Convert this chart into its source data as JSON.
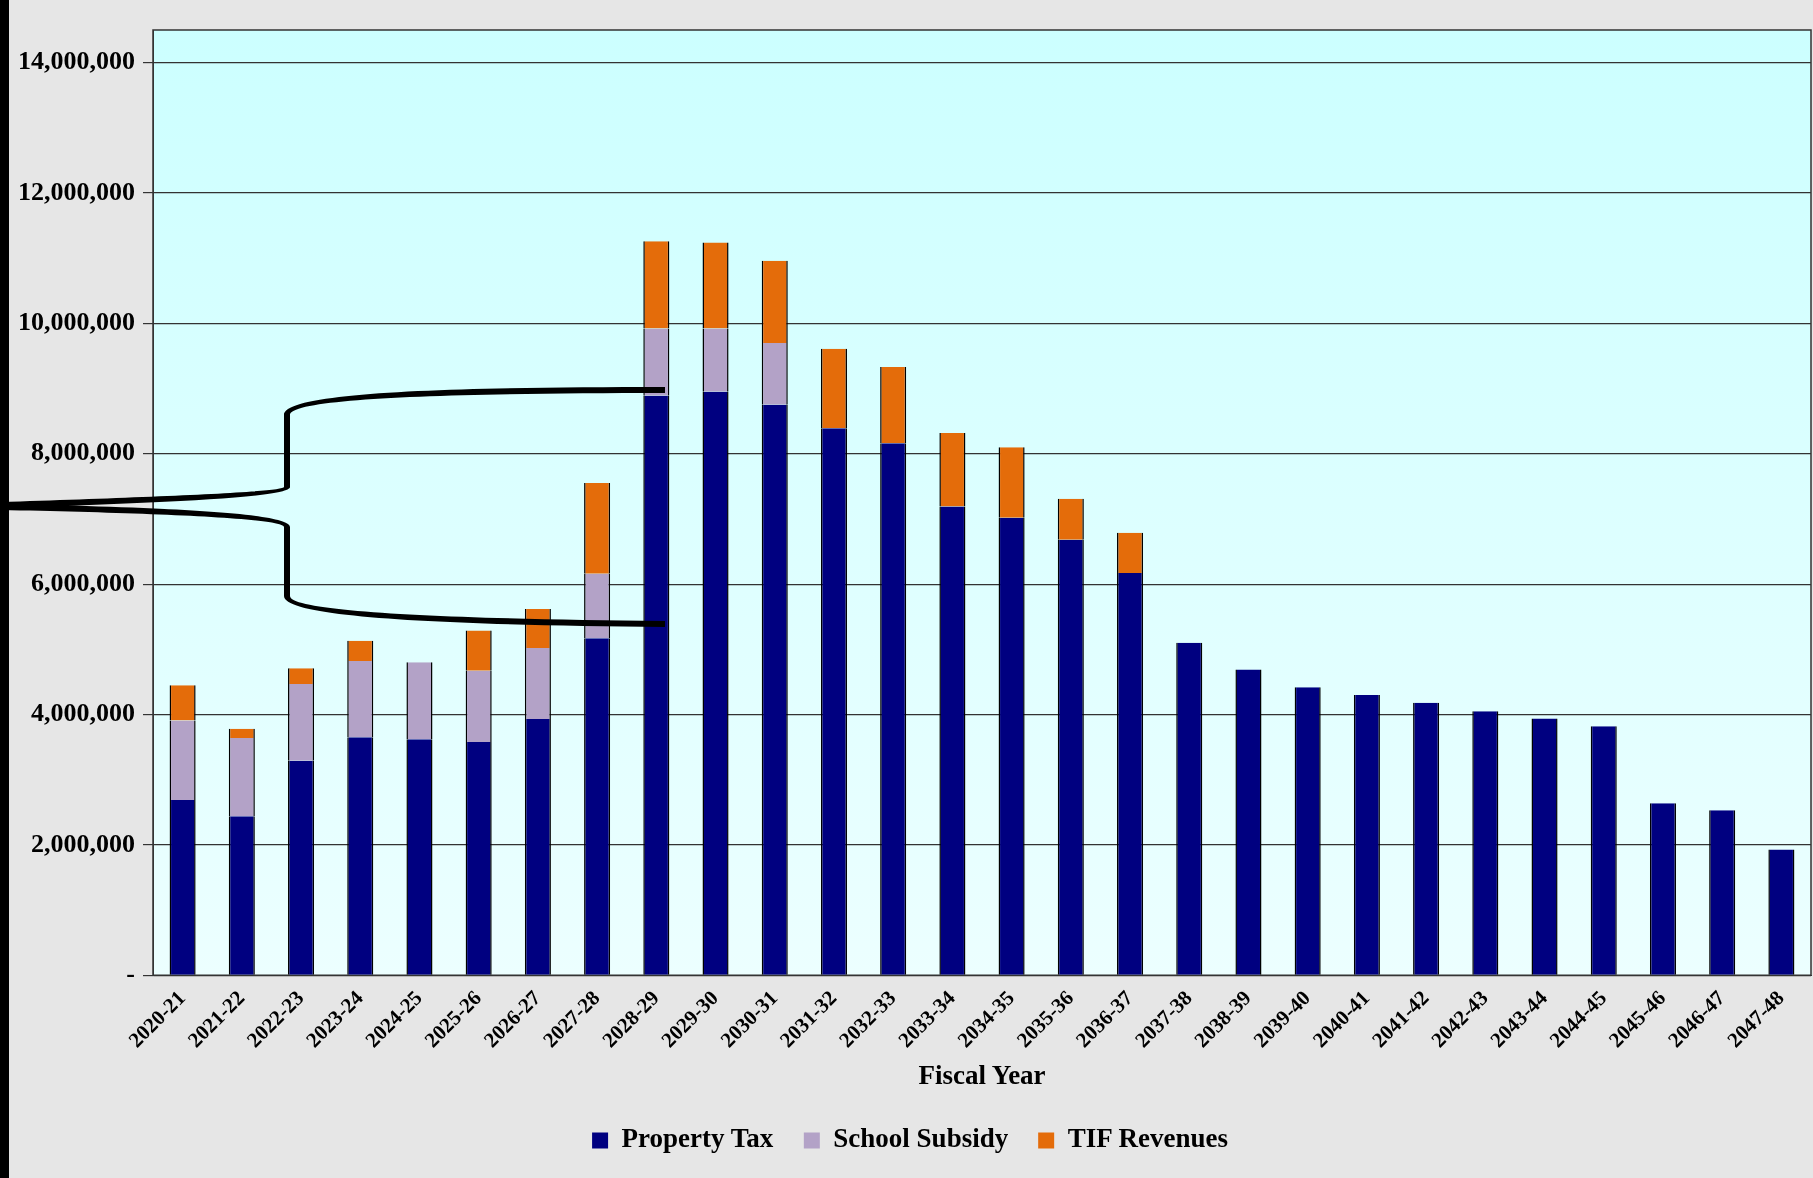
{
  "chart_data": {
    "type": "bar",
    "stacked": true,
    "xlabel": "Fiscal Year",
    "categories": [
      "2020-21",
      "2021-22",
      "2022-23",
      "2023-24",
      "2024-25",
      "2025-26",
      "2026-27",
      "2027-28",
      "2028-29",
      "2029-30",
      "2030-31",
      "2031-32",
      "2032-33",
      "2033-34",
      "2034-35",
      "2035-36",
      "2036-37",
      "2037-38",
      "2038-39",
      "2039-40",
      "2040-41",
      "2041-42",
      "2042-43",
      "2043-44",
      "2044-45",
      "2045-46",
      "2046-47",
      "2047-48"
    ],
    "series": [
      {
        "name": "Property Tax",
        "color": "#000080",
        "values": [
          2690000,
          2440000,
          3290000,
          3650000,
          3620000,
          3580000,
          3930000,
          5170000,
          8890000,
          8950000,
          8750000,
          8390000,
          8160000,
          7190000,
          7020000,
          6680000,
          6170000,
          5100000,
          4690000,
          4420000,
          4300000,
          4180000,
          4050000,
          3940000,
          3820000,
          2640000,
          2530000,
          1930000
        ]
      },
      {
        "name": "School Subsidy",
        "color": "#b3a2c7",
        "values": [
          1220000,
          1200000,
          1180000,
          1170000,
          1180000,
          1090000,
          1090000,
          990000,
          1030000,
          970000,
          950000,
          0,
          0,
          0,
          0,
          0,
          0,
          0,
          0,
          0,
          0,
          0,
          0,
          0,
          0,
          0,
          0,
          0
        ]
      },
      {
        "name": "TIF Revenues",
        "color": "#e46c0a",
        "values": [
          540000,
          140000,
          240000,
          310000,
          0,
          620000,
          600000,
          1390000,
          1340000,
          1320000,
          1260000,
          1220000,
          1170000,
          1130000,
          1080000,
          630000,
          620000,
          0,
          0,
          0,
          0,
          0,
          0,
          0,
          0,
          0,
          0,
          0
        ]
      }
    ],
    "ylim": [
      0,
      14500000
    ],
    "yticks": [
      {
        "value": 0,
        "label": "-"
      },
      {
        "value": 2000000,
        "label": "2,000,000"
      },
      {
        "value": 4000000,
        "label": "4,000,000"
      },
      {
        "value": 6000000,
        "label": "6,000,000"
      },
      {
        "value": 8000000,
        "label": "8,000,000"
      },
      {
        "value": 10000000,
        "label": "10,000,000"
      },
      {
        "value": 12000000,
        "label": "12,000,000"
      },
      {
        "value": 14000000,
        "label": "14,000,000"
      }
    ],
    "grid": "y",
    "legend": "bottom"
  }
}
